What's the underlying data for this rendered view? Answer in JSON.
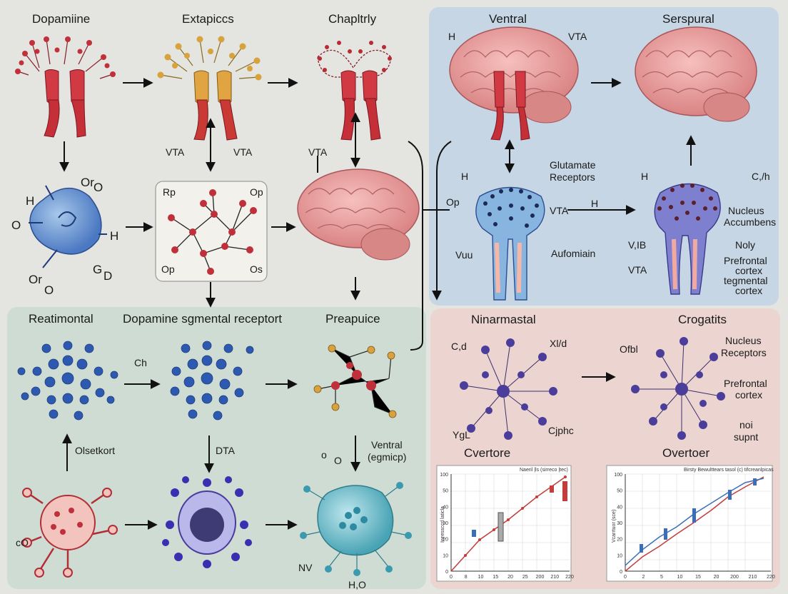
{
  "titles": {
    "t1": "Dopamiine",
    "t2": "Extapiccs",
    "t3": "Chapltrly",
    "t4": "Ventral",
    "t5": "Serspural",
    "t6": "Reatimontal",
    "t7": "Dopamine sgmental receptort",
    "t8": "Preapuice",
    "t9": "Ninarmastal",
    "t10": "Crogatits",
    "t11": "Cvertore",
    "t12": "Overtoer"
  },
  "labels": {
    "vta1": "VTA",
    "vta2": "VTA",
    "vta3": "VTA",
    "vta_top": "VTA",
    "vta_mid": "VTA",
    "vta_right": "VTA",
    "h_top": "H",
    "glutamate": "Glutamate",
    "receptors": "Receptors",
    "h_mid": "H",
    "c1h": "C,/h",
    "h_right": "H",
    "nucleus": "Nucleus",
    "accumbens": "Accumbens",
    "noly": "Noly",
    "prefrontal": "Prefrontal",
    "cortex": "cortex",
    "tegmental": "tegmental",
    "cortex2": "cortex",
    "v1b": "V,IB",
    "op_mid": "Op",
    "vuu": "Vuu",
    "aufomiain": "Aufomiain",
    "h_left": "H",
    "oro_top": "Or",
    "oro_top_o": "O",
    "o_left": "O",
    "h_left2": "H",
    "gd": "G",
    "gd2": "D",
    "oro_bottom": "Or",
    "oro_bottom_o": "O",
    "rp": "Rp",
    "op1": "Op",
    "op2": "Op",
    "os": "Os",
    "ch": "Ch",
    "olsetkort": "Olsetkort",
    "dta": "DTA",
    "ventral2": "Ventral",
    "egmicp": "(egmicp)",
    "oro_w": "o",
    "oro_w2": "O",
    "co": "cO",
    "nv": "NV",
    "h2o": "H,O",
    "cd": "C,d",
    "xld": "Xl/d",
    "ygl": "YgL",
    "cjphe": "Cjphc",
    "ofbl": "Ofbl",
    "nucleus2": "Nucleus",
    "receptors2": "Receptors",
    "prefrontal2": "Prefrontal",
    "cortex3": "cortex",
    "noi": "noi",
    "supnt": "supnt"
  },
  "charts": [
    {
      "title": "Cvertore",
      "caption": "Naeril |ls (sirreco |tec)",
      "ylabel": "Iwressccrl laticla",
      "y_ticks": [
        "0",
        "10",
        "20",
        "30",
        "40",
        "50",
        "100"
      ],
      "x_ticks": [
        "0",
        "8",
        "10",
        "15",
        "20",
        "25",
        "200",
        "210",
        "220"
      ]
    },
    {
      "title": "Overtoer",
      "caption": "Birsty Bewulttears tasol (c) tifcreanlpicas",
      "ylabel": "Vcarrtuor (sce)",
      "y_ticks": [
        "0",
        "10",
        "20",
        "30",
        "40",
        "50",
        "100"
      ],
      "x_ticks": [
        "0",
        "2",
        "5",
        "10",
        "15",
        "20",
        "200",
        "210",
        "220"
      ]
    }
  ],
  "colors": {
    "bg_main": "#e4e4e1",
    "panel_blue": "#c8d8e6",
    "panel_green": "#cfdcd3",
    "panel_pink": "#ecd2cf",
    "dopamine_red": "#c9303b",
    "node_blue": "#2e5aa8",
    "node_purple": "#4a3a9c",
    "brain_pink": "#e8999a"
  }
}
